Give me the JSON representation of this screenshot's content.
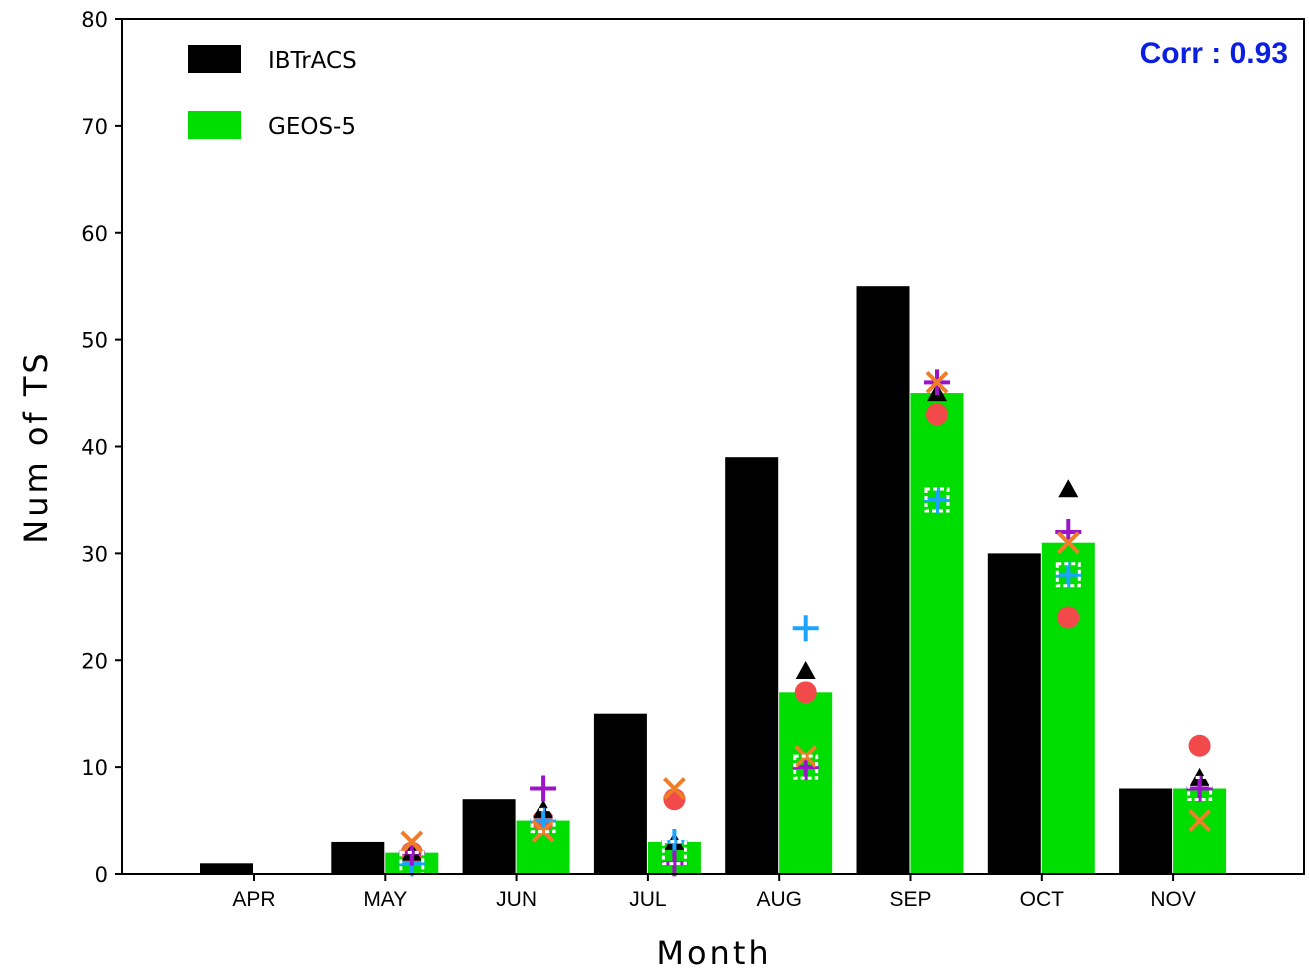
{
  "chart_data": {
    "type": "bar",
    "xlabel": "Month",
    "ylabel": "Num of TS",
    "ylim": [
      0,
      80
    ],
    "yticks": [
      0,
      10,
      20,
      30,
      40,
      50,
      60,
      70,
      80
    ],
    "categories": [
      "APR",
      "MAY",
      "JUN",
      "JUL",
      "AUG",
      "SEP",
      "OCT",
      "NOV"
    ],
    "series": [
      {
        "name": "IBTrACS",
        "color": "#000000",
        "values": [
          1,
          3,
          7,
          15,
          39,
          55,
          30,
          8
        ]
      },
      {
        "name": "GEOS-5",
        "color": "#00dd00",
        "values": [
          0,
          2,
          5,
          3,
          17,
          45,
          31,
          8
        ]
      }
    ],
    "member_markers": [
      {
        "marker": "circle",
        "color": "#f24a4a",
        "values": [
          null,
          2,
          5,
          7,
          17,
          43,
          24,
          12
        ]
      },
      {
        "marker": "triangle",
        "color": "#000000",
        "values": [
          null,
          2,
          6,
          3,
          19,
          45,
          36,
          9
        ]
      },
      {
        "marker": "plus",
        "color": "#1aa3ff",
        "values": [
          null,
          1,
          5,
          3,
          23,
          35,
          28,
          8
        ]
      },
      {
        "marker": "plus",
        "color": "#9b14c8",
        "values": [
          null,
          2,
          8,
          1,
          10,
          46,
          32,
          8
        ]
      },
      {
        "marker": "x",
        "color": "#ef7d2a",
        "values": [
          null,
          3,
          4,
          8,
          11,
          46,
          31,
          5
        ]
      },
      {
        "marker": "square",
        "color": "#ffffff",
        "values": [
          null,
          1,
          5,
          2,
          10,
          35,
          28,
          8
        ]
      }
    ],
    "legend_position": "top-left",
    "annotation": {
      "text": "Corr : 0.93",
      "color": "#0b1fe0",
      "position": "top-right"
    }
  }
}
